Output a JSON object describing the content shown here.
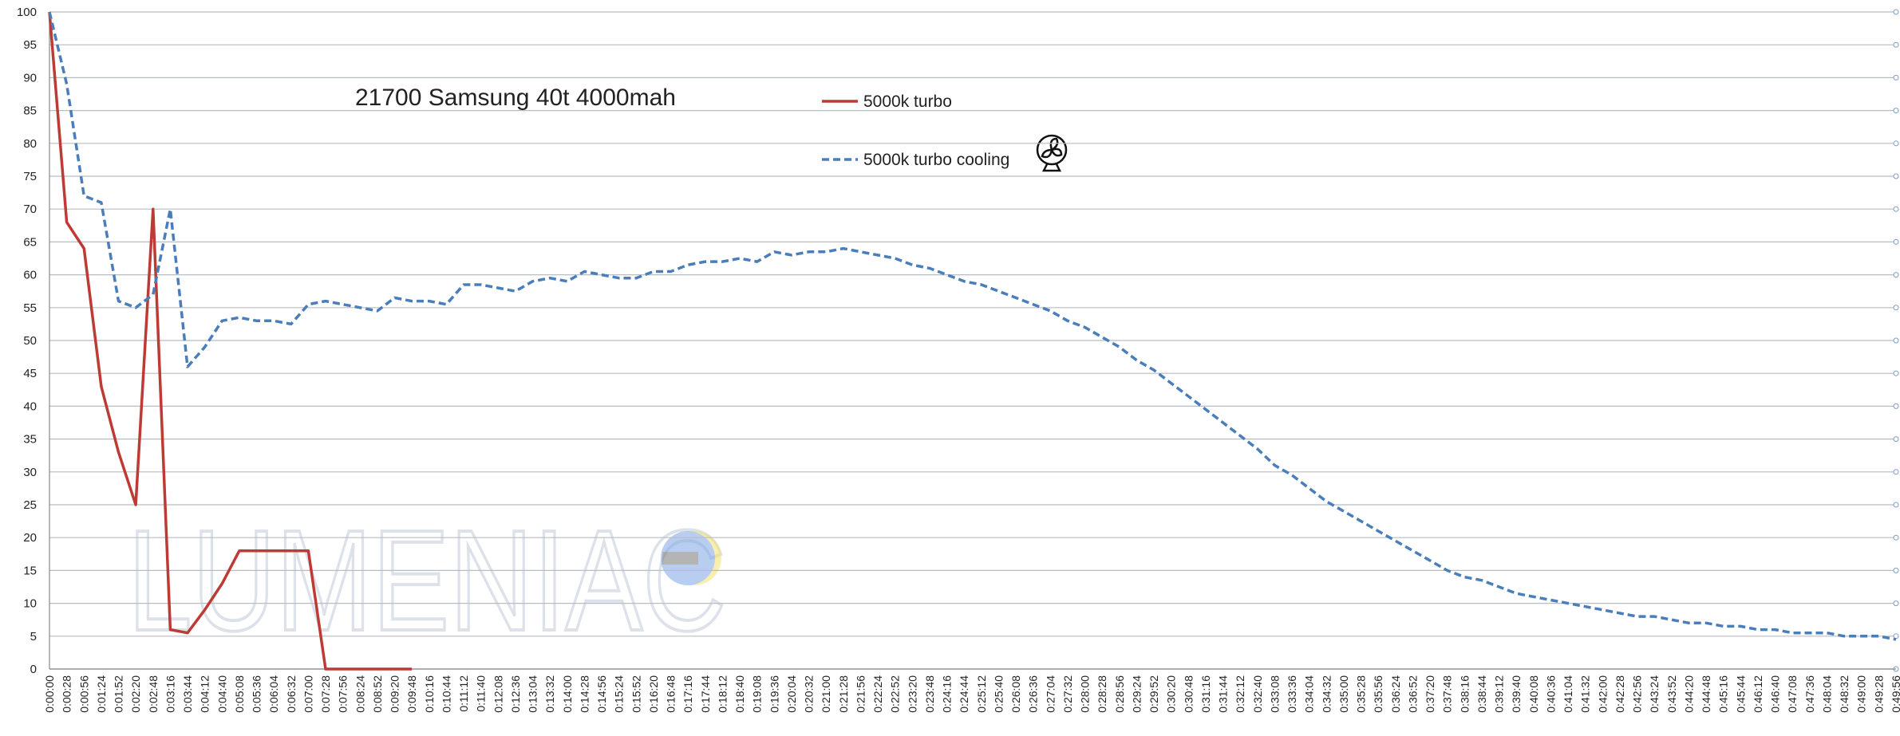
{
  "chart_data": {
    "type": "line",
    "title": "21700 Samsung 40t 4000mah",
    "watermark": "LUMENIAC",
    "categories": [
      "0:00:00",
      "0:00:28",
      "0:00:56",
      "0:01:24",
      "0:01:52",
      "0:02:20",
      "0:02:48",
      "0:03:16",
      "0:03:44",
      "0:04:12",
      "0:04:40",
      "0:05:08",
      "0:05:36",
      "0:06:04",
      "0:06:32",
      "0:07:00",
      "0:07:28",
      "0:07:56",
      "0:08:24",
      "0:08:52",
      "0:09:20",
      "0:09:48",
      "0:10:16",
      "0:10:44",
      "0:11:12",
      "0:11:40",
      "0:12:08",
      "0:12:36",
      "0:13:04",
      "0:13:32",
      "0:14:00",
      "0:14:28",
      "0:14:56",
      "0:15:24",
      "0:15:52",
      "0:16:20",
      "0:16:48",
      "0:17:16",
      "0:17:44",
      "0:18:12",
      "0:18:40",
      "0:19:08",
      "0:19:36",
      "0:20:04",
      "0:20:32",
      "0:21:00",
      "0:21:28",
      "0:21:56",
      "0:22:24",
      "0:22:52",
      "0:23:20",
      "0:23:48",
      "0:24:16",
      "0:24:44",
      "0:25:12",
      "0:25:40",
      "0:26:08",
      "0:26:36",
      "0:27:04",
      "0:27:32",
      "0:28:00",
      "0:28:28",
      "0:28:56",
      "0:29:24",
      "0:29:52",
      "0:30:20",
      "0:30:48",
      "0:31:16",
      "0:31:44",
      "0:32:12",
      "0:32:40",
      "0:33:08",
      "0:33:36",
      "0:34:04",
      "0:34:32",
      "0:35:00",
      "0:35:28",
      "0:35:56",
      "0:36:24",
      "0:36:52",
      "0:37:20",
      "0:37:48",
      "0:38:16",
      "0:38:44",
      "0:39:12",
      "0:39:40",
      "0:40:08",
      "0:40:36",
      "0:41:04",
      "0:41:32",
      "0:42:00",
      "0:42:28",
      "0:42:56",
      "0:43:24",
      "0:43:52",
      "0:44:20",
      "0:44:48",
      "0:45:16",
      "0:45:44",
      "0:46:12",
      "0:46:40",
      "0:47:08",
      "0:47:36",
      "0:48:04",
      "0:48:32",
      "0:49:00",
      "0:49:28",
      "0:49:56"
    ],
    "series": [
      {
        "name": "5000k turbo",
        "color": "#be3a34",
        "dashed": false,
        "values": [
          100,
          68,
          64,
          43,
          33,
          25,
          70,
          6,
          5.5,
          9,
          13,
          18,
          18,
          18,
          18,
          18,
          0,
          0,
          0,
          0,
          0,
          0,
          null,
          null,
          null,
          null,
          null,
          null,
          null,
          null,
          null,
          null,
          null,
          null,
          null,
          null,
          null,
          null,
          null,
          null,
          null,
          null,
          null,
          null,
          null,
          null,
          null,
          null,
          null,
          null,
          null,
          null,
          null,
          null,
          null,
          null,
          null,
          null,
          null,
          null,
          null,
          null,
          null,
          null,
          null,
          null,
          null,
          null,
          null,
          null,
          null,
          null,
          null,
          null,
          null,
          null,
          null,
          null,
          null,
          null,
          null,
          null,
          null,
          null,
          null,
          null,
          null,
          null,
          null,
          null,
          null,
          null,
          null,
          null,
          null,
          null,
          null,
          null,
          null,
          null,
          null,
          null,
          null,
          null,
          null,
          null,
          null,
          null
        ]
      },
      {
        "name": "5000k turbo cooling",
        "color": "#4a7ebb",
        "dashed": true,
        "values": [
          100,
          89,
          72,
          71,
          56,
          55,
          57,
          70,
          46,
          49,
          53,
          53.5,
          53,
          53,
          52.5,
          55.5,
          56,
          55.5,
          55,
          54.5,
          56.5,
          56,
          56,
          55.5,
          58.5,
          58.5,
          58,
          57.5,
          59,
          59.5,
          59,
          60.5,
          60,
          59.5,
          59.5,
          60.5,
          60.5,
          61.5,
          62,
          62,
          62.5,
          62,
          63.5,
          63,
          63.5,
          63.5,
          64,
          63.5,
          63,
          62.5,
          61.5,
          61,
          60,
          59,
          58.5,
          57.5,
          56.5,
          55.5,
          54.5,
          53,
          52,
          50.5,
          49,
          47,
          45.5,
          43.5,
          41.5,
          39.5,
          37.5,
          35.5,
          33.5,
          31,
          29.5,
          27.5,
          25.5,
          24,
          22.5,
          21,
          19.5,
          18,
          16.5,
          15,
          14,
          13.5,
          12.5,
          11.5,
          11,
          10.5,
          10,
          9.5,
          9,
          8.5,
          8,
          8,
          7.5,
          7,
          7,
          6.5,
          6.5,
          6,
          6,
          5.5,
          5.5,
          5.5,
          5,
          5,
          5,
          4.5
        ]
      }
    ],
    "ylim": [
      0,
      100
    ],
    "yticks": [
      0,
      5,
      10,
      15,
      20,
      25,
      30,
      35,
      40,
      45,
      50,
      55,
      60,
      65,
      70,
      75,
      80,
      85,
      90,
      95,
      100
    ],
    "grid": true
  }
}
